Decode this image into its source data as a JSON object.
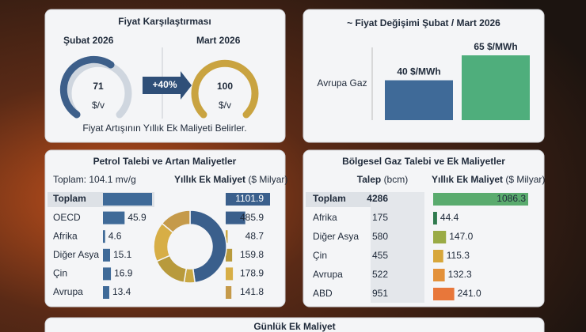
{
  "price": {
    "title": "Fiyat Karşılaştırması",
    "before": {
      "label": "Şubat 2026",
      "value": 71,
      "unit": "$/v"
    },
    "change": "+40%",
    "after": {
      "label": "Mart 2026",
      "value": 100,
      "unit": "$/v"
    },
    "note": "Fiyat Artışının Yıllık Ek Maliyeti Belirler."
  },
  "change": {
    "title": "~ Fiyat Değişimi Şubat / Mart 2026",
    "category": "Avrupa Gaz",
    "values": [
      40,
      65
    ],
    "value_labels": [
      "40 $/MWh",
      "65 $/MWh"
    ],
    "colors": [
      "#3f6a98",
      "#4fae7c"
    ]
  },
  "oil": {
    "title": "Petrol Talebi ve Artan Maliyetler",
    "total_label": "Toplam:",
    "total": 104.1,
    "total_unit": "mv/g",
    "cost_header": "Yıllık Ek Maliyet",
    "cost_unit": "($ Milyar)",
    "rows": [
      {
        "name": "Toplam",
        "cost": 1101.9
      },
      {
        "name": "OECD",
        "demand": 45.9,
        "cost": 485.9
      },
      {
        "name": "Afrika",
        "demand": 4.6,
        "cost": 48.7
      },
      {
        "name": "Diğer Asya",
        "demand": 15.1,
        "cost": 159.8
      },
      {
        "name": "Çin",
        "demand": 16.9,
        "cost": 178.9
      },
      {
        "name": "Avrupa",
        "demand": 13.4,
        "cost": 141.8
      }
    ],
    "colors": [
      "#3a5f8c",
      "#3a5f8c",
      "#c9a843",
      "#b89a3c",
      "#d7ae46",
      "#c59a4a"
    ]
  },
  "gas": {
    "title": "Bölgesel Gaz Talebi ve Ek Maliyetler",
    "demand_header": "Talep",
    "demand_unit": "(bcm)",
    "cost_header": "Yıllık Ek Maliyet",
    "cost_unit": "($ Milyar)",
    "rows": [
      {
        "name": "Toplam",
        "demand": 4286,
        "cost": 1086.3
      },
      {
        "name": "Afrika",
        "demand": 175,
        "cost": 44.4
      },
      {
        "name": "Diğer Asya",
        "demand": 580,
        "cost": 147,
        "cost_label": "147.0"
      },
      {
        "name": "Çin",
        "demand": 455,
        "cost": 115.3
      },
      {
        "name": "Avrupa",
        "demand": 522,
        "cost": 132.3
      },
      {
        "name": "ABD",
        "demand": 951,
        "cost": 241,
        "cost_label": "241.0"
      }
    ],
    "colors": [
      "#5aab6e",
      "#2f7a4e",
      "#9aab45",
      "#d7a63a",
      "#e3913a",
      "#e8773a"
    ]
  },
  "footer": {
    "title": "Günlük Ek Maliyet"
  }
}
